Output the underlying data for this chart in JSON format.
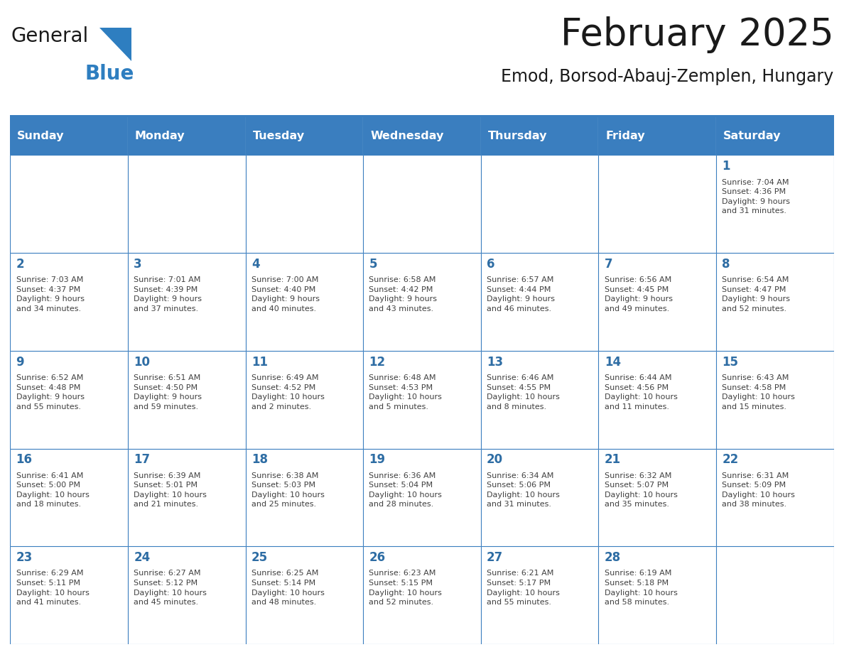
{
  "title": "February 2025",
  "subtitle": "Emod, Borsod-Abauj-Zemplen, Hungary",
  "days_of_week": [
    "Sunday",
    "Monday",
    "Tuesday",
    "Wednesday",
    "Thursday",
    "Friday",
    "Saturday"
  ],
  "header_bg": "#3a7ebf",
  "header_text": "#ffffff",
  "cell_bg": "#ffffff",
  "cell_border": "#3a7ebf",
  "day_number_color": "#2e6da4",
  "info_text_color": "#404040",
  "title_color": "#1a1a1a",
  "subtitle_color": "#1a1a1a",
  "logo_general_color": "#1a1a1a",
  "logo_blue_color": "#2e7ec0",
  "weeks": [
    [
      {
        "day": null,
        "info": ""
      },
      {
        "day": null,
        "info": ""
      },
      {
        "day": null,
        "info": ""
      },
      {
        "day": null,
        "info": ""
      },
      {
        "day": null,
        "info": ""
      },
      {
        "day": null,
        "info": ""
      },
      {
        "day": 1,
        "info": "Sunrise: 7:04 AM\nSunset: 4:36 PM\nDaylight: 9 hours\nand 31 minutes."
      }
    ],
    [
      {
        "day": 2,
        "info": "Sunrise: 7:03 AM\nSunset: 4:37 PM\nDaylight: 9 hours\nand 34 minutes."
      },
      {
        "day": 3,
        "info": "Sunrise: 7:01 AM\nSunset: 4:39 PM\nDaylight: 9 hours\nand 37 minutes."
      },
      {
        "day": 4,
        "info": "Sunrise: 7:00 AM\nSunset: 4:40 PM\nDaylight: 9 hours\nand 40 minutes."
      },
      {
        "day": 5,
        "info": "Sunrise: 6:58 AM\nSunset: 4:42 PM\nDaylight: 9 hours\nand 43 minutes."
      },
      {
        "day": 6,
        "info": "Sunrise: 6:57 AM\nSunset: 4:44 PM\nDaylight: 9 hours\nand 46 minutes."
      },
      {
        "day": 7,
        "info": "Sunrise: 6:56 AM\nSunset: 4:45 PM\nDaylight: 9 hours\nand 49 minutes."
      },
      {
        "day": 8,
        "info": "Sunrise: 6:54 AM\nSunset: 4:47 PM\nDaylight: 9 hours\nand 52 minutes."
      }
    ],
    [
      {
        "day": 9,
        "info": "Sunrise: 6:52 AM\nSunset: 4:48 PM\nDaylight: 9 hours\nand 55 minutes."
      },
      {
        "day": 10,
        "info": "Sunrise: 6:51 AM\nSunset: 4:50 PM\nDaylight: 9 hours\nand 59 minutes."
      },
      {
        "day": 11,
        "info": "Sunrise: 6:49 AM\nSunset: 4:52 PM\nDaylight: 10 hours\nand 2 minutes."
      },
      {
        "day": 12,
        "info": "Sunrise: 6:48 AM\nSunset: 4:53 PM\nDaylight: 10 hours\nand 5 minutes."
      },
      {
        "day": 13,
        "info": "Sunrise: 6:46 AM\nSunset: 4:55 PM\nDaylight: 10 hours\nand 8 minutes."
      },
      {
        "day": 14,
        "info": "Sunrise: 6:44 AM\nSunset: 4:56 PM\nDaylight: 10 hours\nand 11 minutes."
      },
      {
        "day": 15,
        "info": "Sunrise: 6:43 AM\nSunset: 4:58 PM\nDaylight: 10 hours\nand 15 minutes."
      }
    ],
    [
      {
        "day": 16,
        "info": "Sunrise: 6:41 AM\nSunset: 5:00 PM\nDaylight: 10 hours\nand 18 minutes."
      },
      {
        "day": 17,
        "info": "Sunrise: 6:39 AM\nSunset: 5:01 PM\nDaylight: 10 hours\nand 21 minutes."
      },
      {
        "day": 18,
        "info": "Sunrise: 6:38 AM\nSunset: 5:03 PM\nDaylight: 10 hours\nand 25 minutes."
      },
      {
        "day": 19,
        "info": "Sunrise: 6:36 AM\nSunset: 5:04 PM\nDaylight: 10 hours\nand 28 minutes."
      },
      {
        "day": 20,
        "info": "Sunrise: 6:34 AM\nSunset: 5:06 PM\nDaylight: 10 hours\nand 31 minutes."
      },
      {
        "day": 21,
        "info": "Sunrise: 6:32 AM\nSunset: 5:07 PM\nDaylight: 10 hours\nand 35 minutes."
      },
      {
        "day": 22,
        "info": "Sunrise: 6:31 AM\nSunset: 5:09 PM\nDaylight: 10 hours\nand 38 minutes."
      }
    ],
    [
      {
        "day": 23,
        "info": "Sunrise: 6:29 AM\nSunset: 5:11 PM\nDaylight: 10 hours\nand 41 minutes."
      },
      {
        "day": 24,
        "info": "Sunrise: 6:27 AM\nSunset: 5:12 PM\nDaylight: 10 hours\nand 45 minutes."
      },
      {
        "day": 25,
        "info": "Sunrise: 6:25 AM\nSunset: 5:14 PM\nDaylight: 10 hours\nand 48 minutes."
      },
      {
        "day": 26,
        "info": "Sunrise: 6:23 AM\nSunset: 5:15 PM\nDaylight: 10 hours\nand 52 minutes."
      },
      {
        "day": 27,
        "info": "Sunrise: 6:21 AM\nSunset: 5:17 PM\nDaylight: 10 hours\nand 55 minutes."
      },
      {
        "day": 28,
        "info": "Sunrise: 6:19 AM\nSunset: 5:18 PM\nDaylight: 10 hours\nand 58 minutes."
      },
      {
        "day": null,
        "info": ""
      }
    ]
  ]
}
